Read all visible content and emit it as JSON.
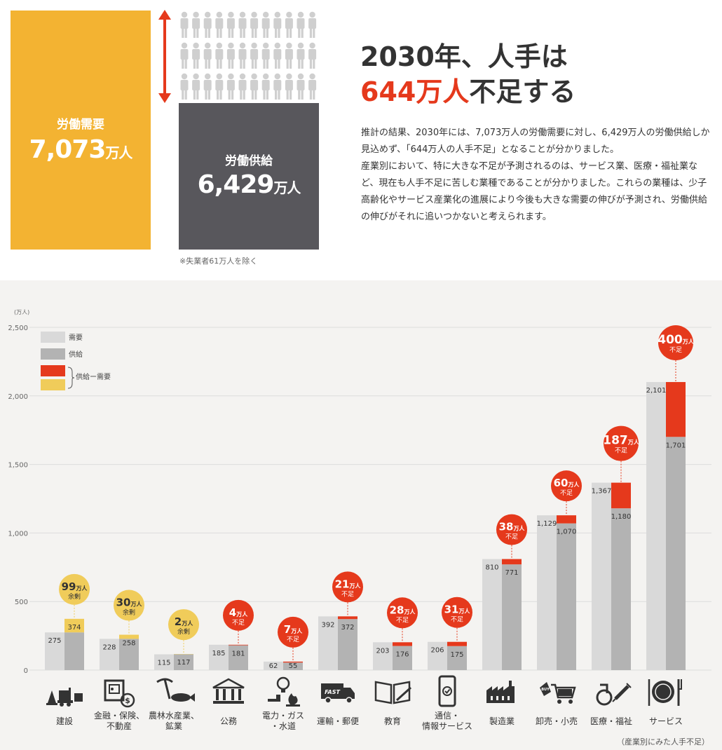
{
  "summary": {
    "demand_label": "労働需要",
    "demand_value": "7,073",
    "demand_unit": "万人",
    "supply_label": "労働供給",
    "supply_value": "6,429",
    "supply_unit": "万人",
    "note": "※失業者61万人を除く",
    "headline_line1": "2030年、人手は",
    "headline_red": "644万人",
    "headline_rest": "不足する",
    "paragraph1": "推計の結果、2030年には、7,073万人の労働需要に対し、6,429万人の労働供給しか見込めず、「644万人の人手不足」となることが分かりました。",
    "paragraph2": "産業別において、特に大きな不足が予測されるのは、サービス業、医療・福祉業など、現在も人手不足に苦しむ業種であることが分かりました。これらの業種は、少子高齢化やサービス産業化の進展により今後も大きな需要の伸びが予測され、労働供給の伸びがそれに追いつかないと考えられます。"
  },
  "colors": {
    "demand": "#d9d9d9",
    "supply": "#b3b3b3",
    "shortage": "#e5391c",
    "surplus": "#f0cc5a",
    "demand_box": "#f3b332",
    "supply_box": "#58575c"
  },
  "chart_data": {
    "type": "bar",
    "yunit": "(万人)",
    "ylim": [
      0,
      2500
    ],
    "yticks": [
      0,
      500,
      1000,
      1500,
      2000,
      2500
    ],
    "ytick_labels": [
      "0",
      "500",
      "1,000",
      "1,500",
      "2,000",
      "2,500"
    ],
    "legend": {
      "demand": "需要",
      "supply": "供給",
      "diff": "供給ー需要"
    },
    "categories": [
      {
        "name": "建設",
        "icon": "construction-icon",
        "demand": 275,
        "supply": 374,
        "demand_label": "275",
        "supply_label": "374",
        "diff_num": "99",
        "diff_unit": "万人",
        "diff_word": "余剰",
        "type": "surplus"
      },
      {
        "name": "金融・保険、\n不動産",
        "icon": "finance-icon",
        "demand": 228,
        "supply": 258,
        "demand_label": "228",
        "supply_label": "258",
        "diff_num": "30",
        "diff_unit": "万人",
        "diff_word": "余剰",
        "type": "surplus"
      },
      {
        "name": "農林水産業、\n鉱業",
        "icon": "agriculture-icon",
        "demand": 115,
        "supply": 117,
        "demand_label": "115",
        "supply_label": "117",
        "diff_num": "2",
        "diff_unit": "万人",
        "diff_word": "余剰",
        "type": "surplus"
      },
      {
        "name": "公務",
        "icon": "government-icon",
        "demand": 185,
        "supply": 181,
        "demand_label": "185",
        "supply_label": "181",
        "diff_num": "4",
        "diff_unit": "万人",
        "diff_word": "不足",
        "type": "shortage"
      },
      {
        "name": "電力・ガス\n・水道",
        "icon": "utilities-icon",
        "demand": 62,
        "supply": 55,
        "demand_label": "62",
        "supply_label": "55",
        "diff_num": "7",
        "diff_unit": "万人",
        "diff_word": "不足",
        "type": "shortage"
      },
      {
        "name": "運輸・郵便",
        "icon": "truck-icon",
        "demand": 392,
        "supply": 372,
        "demand_label": "392",
        "supply_label": "372",
        "diff_num": "21",
        "diff_unit": "万人",
        "diff_word": "不足",
        "type": "shortage"
      },
      {
        "name": "教育",
        "icon": "book-icon",
        "demand": 203,
        "supply": 176,
        "demand_label": "203",
        "supply_label": "176",
        "diff_num": "28",
        "diff_unit": "万人",
        "diff_word": "不足",
        "type": "shortage"
      },
      {
        "name": "通信・\n情報サービス",
        "icon": "smartphone-icon",
        "demand": 206,
        "supply": 175,
        "demand_label": "206",
        "supply_label": "175",
        "diff_num": "31",
        "diff_unit": "万人",
        "diff_word": "不足",
        "type": "shortage"
      },
      {
        "name": "製造業",
        "icon": "factory-icon",
        "demand": 810,
        "supply": 771,
        "demand_label": "810",
        "supply_label": "771",
        "diff_num": "38",
        "diff_unit": "万人",
        "diff_word": "不足",
        "type": "shortage"
      },
      {
        "name": "卸売・小売",
        "icon": "shopping-cart-icon",
        "demand": 1129,
        "supply": 1070,
        "demand_label": "1,129",
        "supply_label": "1,070",
        "diff_num": "60",
        "diff_unit": "万人",
        "diff_word": "不足",
        "type": "shortage"
      },
      {
        "name": "医療・福祉",
        "icon": "medical-icon",
        "demand": 1367,
        "supply": 1180,
        "demand_label": "1,367",
        "supply_label": "1,180",
        "diff_num": "187",
        "diff_unit": "万人",
        "diff_word": "不足",
        "type": "shortage"
      },
      {
        "name": "サービス",
        "icon": "dining-icon",
        "demand": 2101,
        "supply": 1701,
        "demand_label": "2,101",
        "supply_label": "1,701",
        "diff_num": "400",
        "diff_unit": "万人",
        "diff_word": "不足",
        "type": "shortage"
      }
    ],
    "footnote": "（産業別にみた人手不足）"
  }
}
